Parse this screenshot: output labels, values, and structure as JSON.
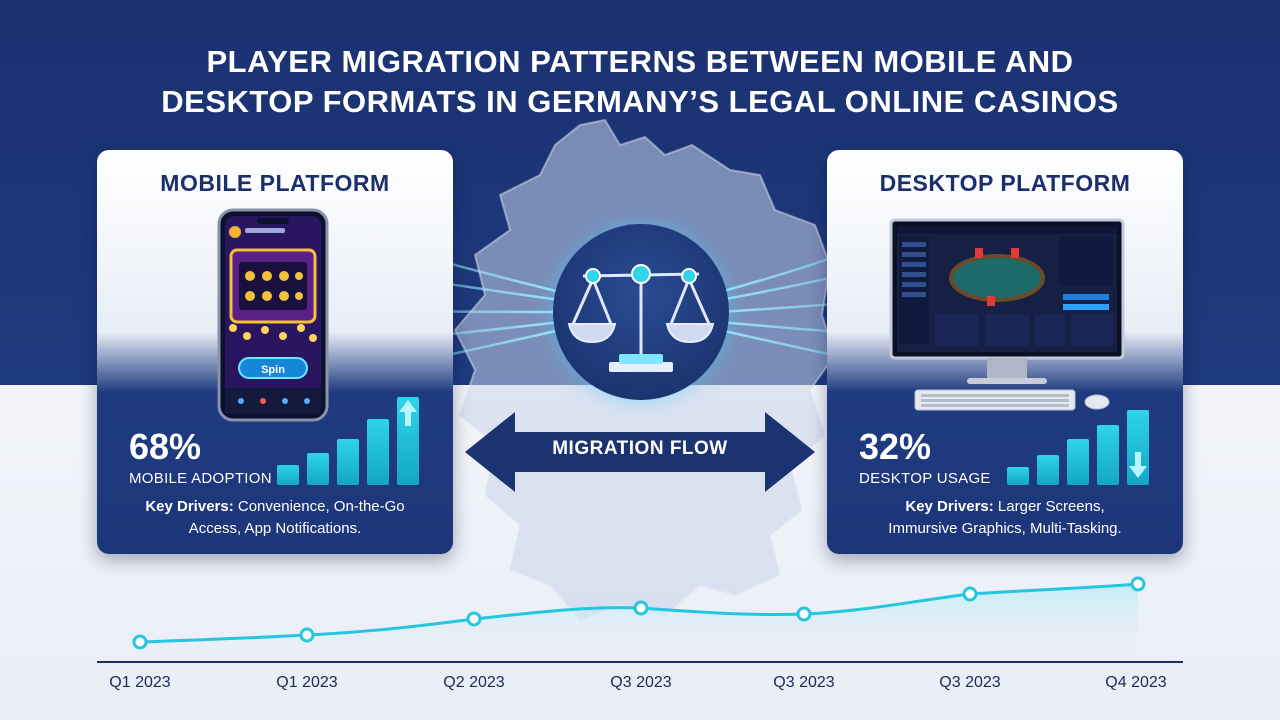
{
  "title": {
    "line1": "PLAYER MIGRATION PATTERNS BETWEEN MOBILE AND",
    "line2": "DESKTOP FORMATS IN GERMANY’S LEGAL ONLINE CASINOS"
  },
  "mobile": {
    "title": "MOBILE PLATFORM",
    "stat_value": "68%",
    "stat_label": "MOBILE ADOPTION",
    "drivers_label": "Key Drivers:",
    "drivers_text1": " Convenience, On-the-Go",
    "drivers_text2": "Access, App Notifications.",
    "spin_label": "Spin",
    "trend": "up"
  },
  "desktop": {
    "title": "DESKTOP PLATFORM",
    "stat_value": "32%",
    "stat_label": "DESKTOP USAGE",
    "drivers_label": "Key Drivers:",
    "drivers_text1": " Larger Screens,",
    "drivers_text2": "Immursive Graphics, Multi-Tasking.",
    "trend": "down"
  },
  "center": {
    "flow_label": "MIGRATION FLOW",
    "icon": "balance-scale-icon"
  },
  "timeline": {
    "labels": [
      "Q1 2023",
      "Q1 2023",
      "Q2 2023",
      "Q3 2023",
      "Q3 2023",
      "Q3 2023",
      "Q4 2023"
    ]
  },
  "colors": {
    "navy": "#1b3170",
    "accent": "#2fd4ea",
    "text_dark": "#1c2f6d"
  }
}
